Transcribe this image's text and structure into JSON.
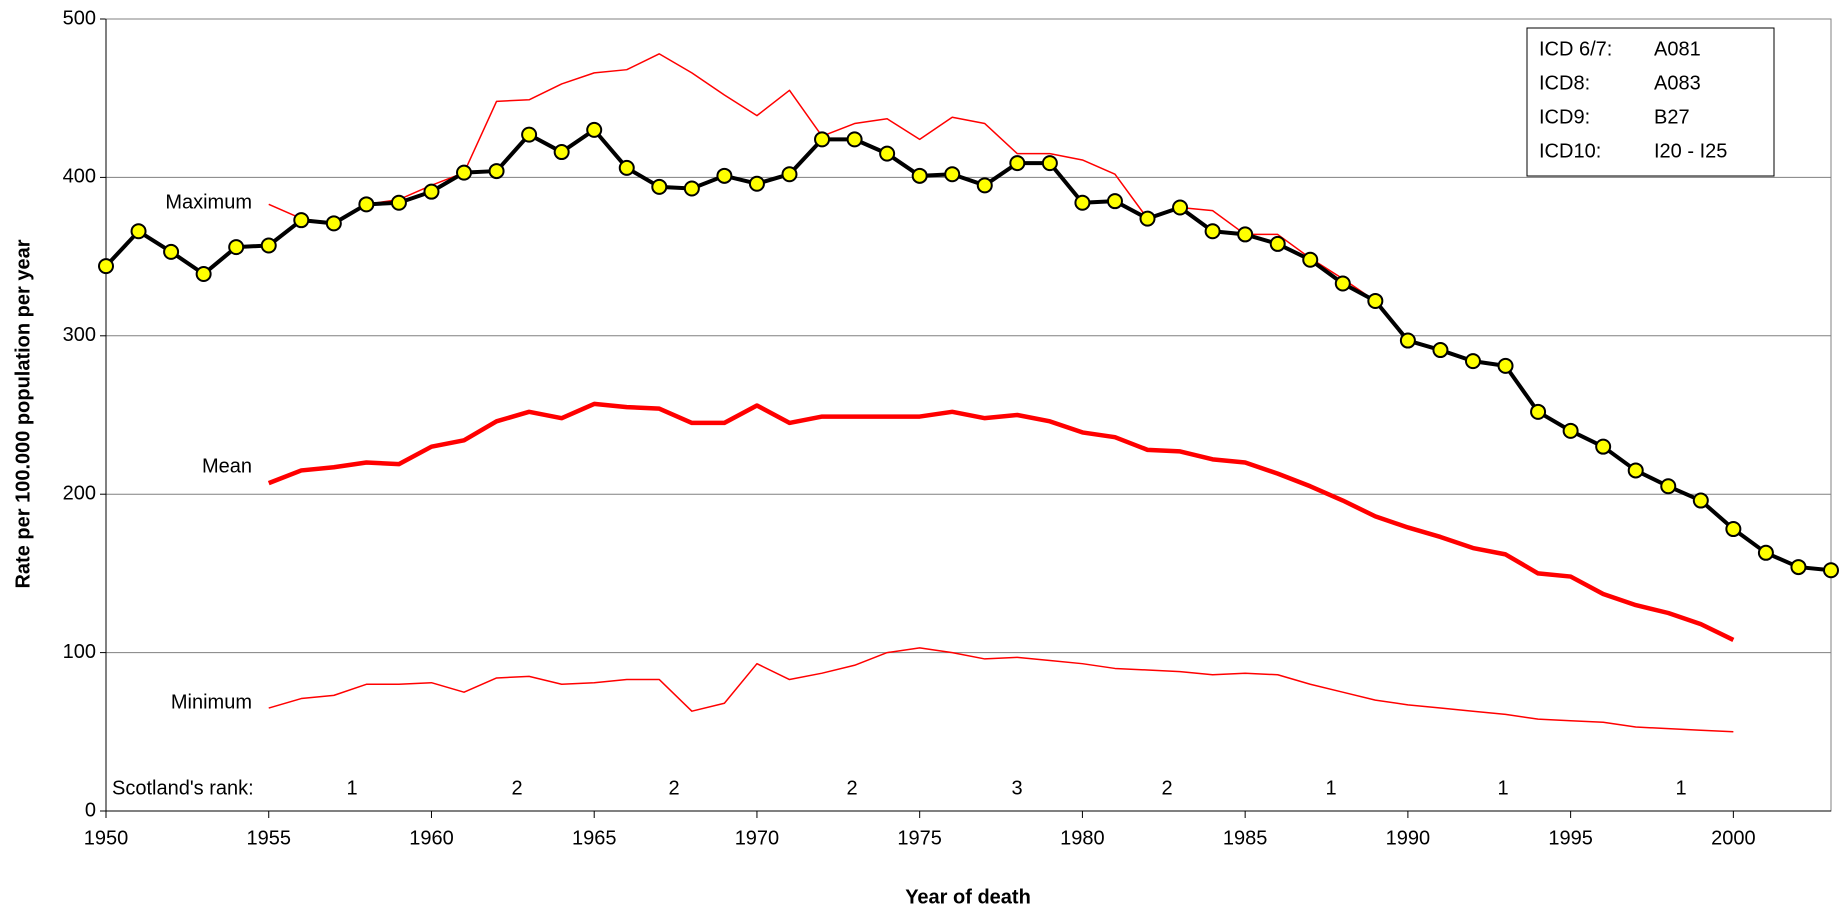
{
  "chart_data": {
    "type": "line",
    "xlabel": "Year of death",
    "ylabel": "Rate per 100.000 population per year",
    "xlim": [
      1950,
      2003
    ],
    "ylim": [
      0,
      500
    ],
    "xticks": [
      1950,
      1955,
      1960,
      1965,
      1970,
      1975,
      1980,
      1985,
      1990,
      1995,
      2000
    ],
    "yticks": [
      0,
      100,
      200,
      300,
      400,
      500
    ],
    "grid": true,
    "series": [
      {
        "name": "Maximum",
        "color": "#ff0000",
        "x": [
          1955,
          1956,
          1957,
          1958,
          1959,
          1960,
          1961,
          1962,
          1963,
          1964,
          1965,
          1966,
          1967,
          1968,
          1969,
          1970,
          1971,
          1972,
          1973,
          1974,
          1975,
          1976,
          1977,
          1978,
          1979,
          1980,
          1981,
          1982,
          1983,
          1984,
          1985,
          1986,
          1987,
          1988,
          1989,
          1990,
          1991,
          1992,
          1993,
          1994,
          1995,
          1996,
          1997,
          1998,
          1999,
          2000
        ],
        "values": [
          383,
          374,
          371,
          383,
          386,
          395,
          403,
          448,
          449,
          459,
          466,
          468,
          478,
          466,
          452,
          439,
          455,
          426,
          434,
          437,
          424,
          438,
          434,
          415,
          415,
          411,
          402,
          374,
          381,
          379,
          364,
          364,
          349,
          336,
          322,
          297,
          291,
          284,
          281,
          252,
          240,
          230,
          215,
          205,
          196,
          178
        ]
      },
      {
        "name": "Mean",
        "color": "#ff0000",
        "x": [
          1955,
          1956,
          1957,
          1958,
          1959,
          1960,
          1961,
          1962,
          1963,
          1964,
          1965,
          1966,
          1967,
          1968,
          1969,
          1970,
          1971,
          1972,
          1973,
          1974,
          1975,
          1976,
          1977,
          1978,
          1979,
          1980,
          1981,
          1982,
          1983,
          1984,
          1985,
          1986,
          1987,
          1988,
          1989,
          1990,
          1991,
          1992,
          1993,
          1994,
          1995,
          1996,
          1997,
          1998,
          1999,
          2000
        ],
        "values": [
          207,
          215,
          217,
          220,
          219,
          230,
          234,
          246,
          252,
          248,
          257,
          255,
          254,
          245,
          245,
          256,
          245,
          249,
          249,
          249,
          249,
          252,
          248,
          250,
          246,
          239,
          236,
          228,
          227,
          222,
          220,
          213,
          205,
          196,
          186,
          179,
          173,
          166,
          162,
          150,
          148,
          137,
          130,
          125,
          118,
          108
        ]
      },
      {
        "name": "Minimum",
        "color": "#ff0000",
        "x": [
          1955,
          1956,
          1957,
          1958,
          1959,
          1960,
          1961,
          1962,
          1963,
          1964,
          1965,
          1966,
          1967,
          1968,
          1969,
          1970,
          1971,
          1972,
          1973,
          1974,
          1975,
          1976,
          1977,
          1978,
          1979,
          1980,
          1981,
          1982,
          1983,
          1984,
          1985,
          1986,
          1987,
          1988,
          1989,
          1990,
          1991,
          1992,
          1993,
          1994,
          1995,
          1996,
          1997,
          1998,
          1999,
          2000
        ],
        "values": [
          65,
          71,
          73,
          80,
          80,
          81,
          75,
          84,
          85,
          80,
          81,
          83,
          83,
          63,
          68,
          93,
          83,
          87,
          92,
          100,
          103,
          100,
          96,
          97,
          95,
          93,
          90,
          89,
          88,
          86,
          87,
          86,
          80,
          75,
          70,
          67,
          65,
          63,
          61,
          58,
          57,
          56,
          53,
          52,
          51,
          50
        ]
      },
      {
        "color": "#000000",
        "marker_color": "#ffff00",
        "x": [
          1950,
          1951,
          1952,
          1953,
          1954,
          1955,
          1956,
          1957,
          1958,
          1959,
          1960,
          1961,
          1962,
          1963,
          1964,
          1965,
          1966,
          1967,
          1968,
          1969,
          1970,
          1971,
          1972,
          1973,
          1974,
          1975,
          1976,
          1977,
          1978,
          1979,
          1980,
          1981,
          1982,
          1983,
          1984,
          1985,
          1986,
          1987,
          1988,
          1989,
          1990,
          1991,
          1992,
          1993,
          1994,
          1995,
          1996,
          1997,
          1998,
          1999,
          2000,
          2001,
          2002,
          2003
        ],
        "values": [
          344,
          366,
          353,
          339,
          356,
          357,
          373,
          371,
          383,
          384,
          391,
          403,
          404,
          427,
          416,
          430,
          406,
          394,
          393,
          401,
          396,
          402,
          424,
          424,
          415,
          401,
          402,
          395,
          409,
          409,
          384,
          385,
          374,
          381,
          366,
          364,
          358,
          348,
          333,
          322,
          297,
          291,
          284,
          281,
          252,
          240,
          230,
          215,
          205,
          196,
          178,
          163,
          154,
          152
        ]
      }
    ],
    "rank_label": "Scotland's rank:",
    "ranks": [
      1,
      2,
      2,
      2,
      3,
      2,
      1,
      1,
      1
    ],
    "codes": [
      [
        "ICD 6/7:",
        "A081"
      ],
      [
        "ICD8:",
        "A083"
      ],
      [
        "ICD9:",
        "B27"
      ],
      [
        "ICD10:",
        "I20 - I25"
      ]
    ]
  }
}
